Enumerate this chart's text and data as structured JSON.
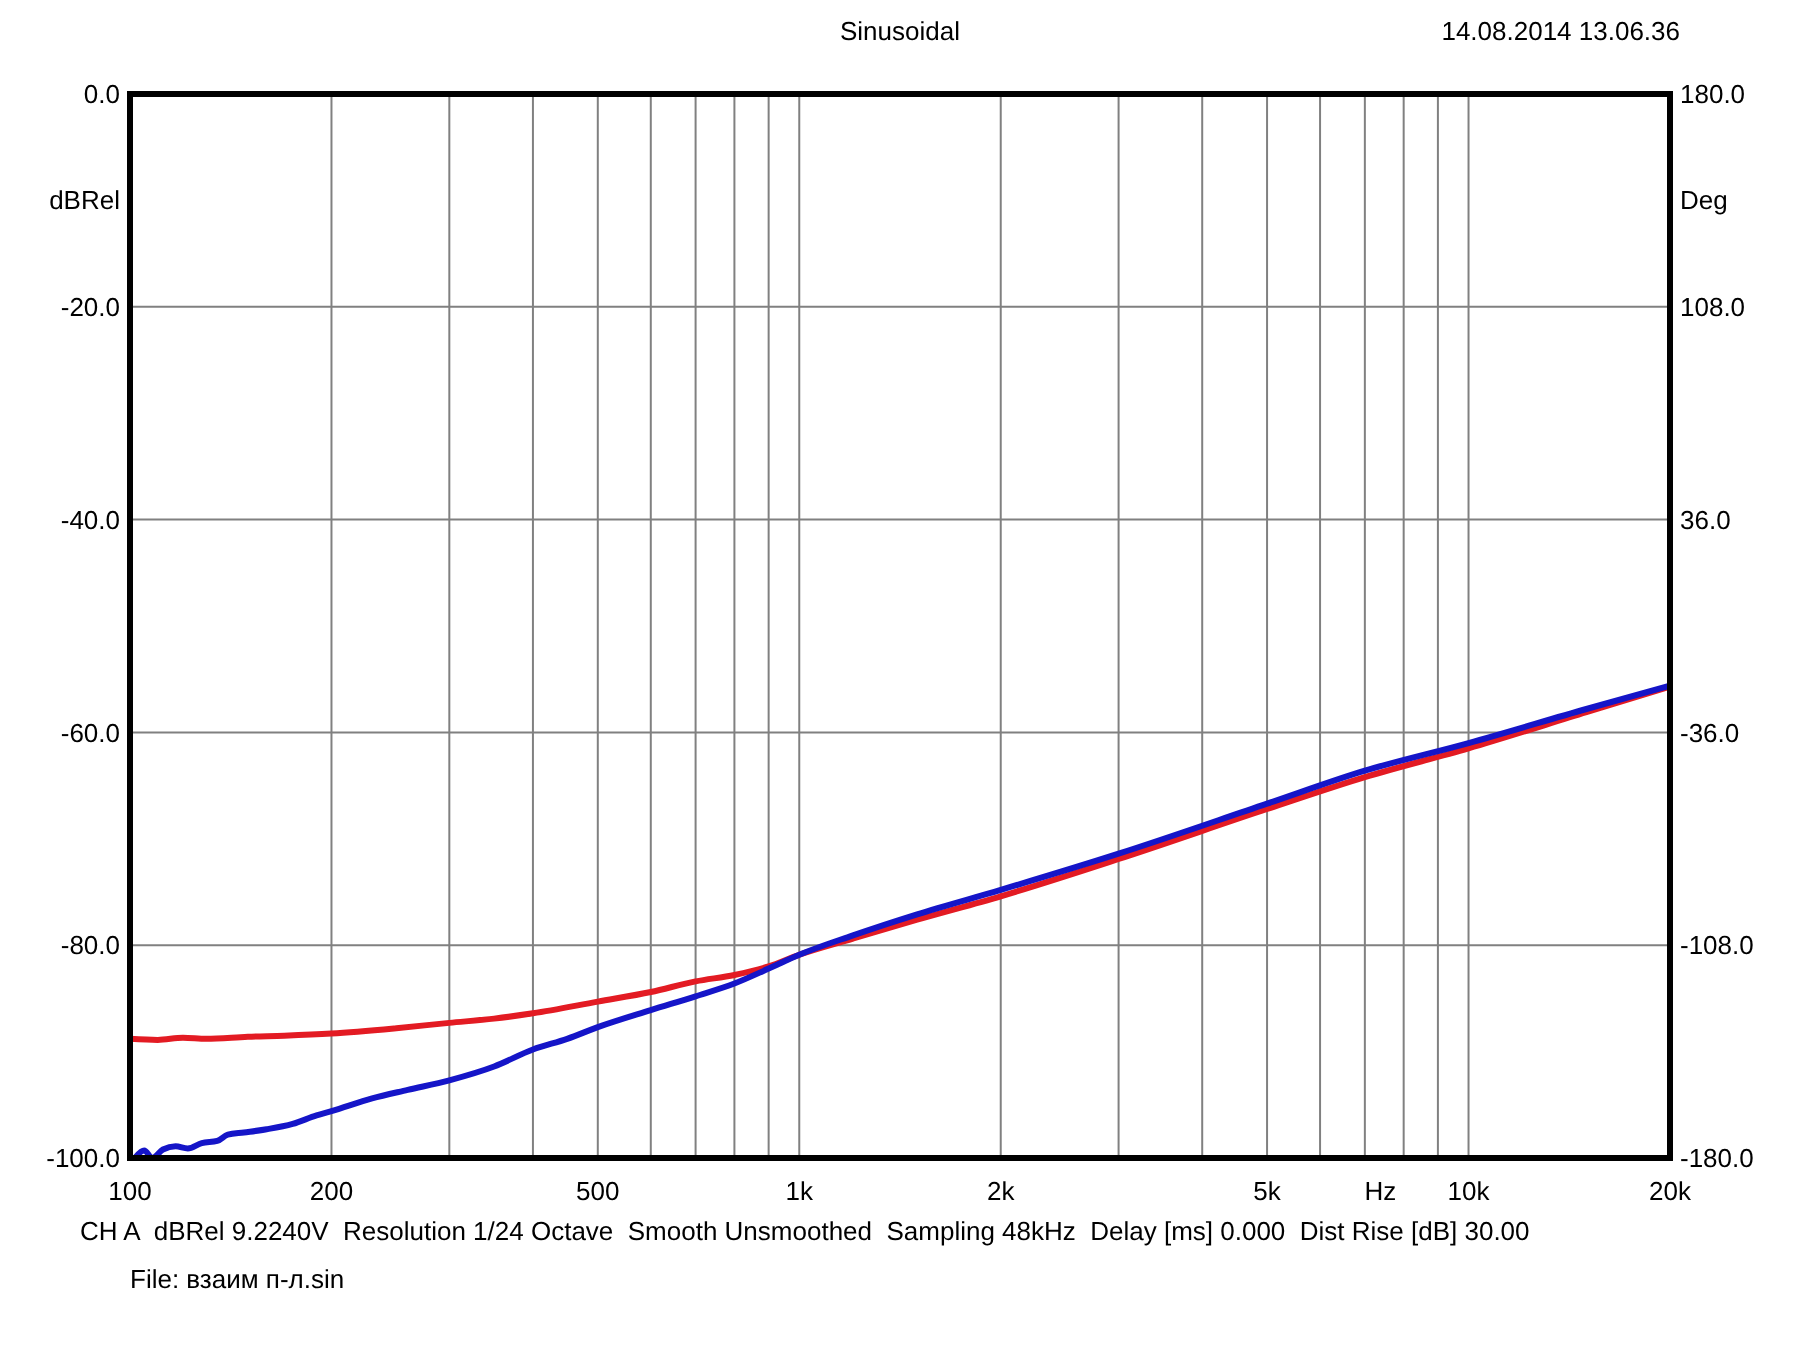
{
  "chart_data": {
    "type": "line",
    "title": "Sinusoidal",
    "xlabel": "Hz",
    "ylabel": "dBRel",
    "y2label": "Deg",
    "annotations": [
      "14.08.2014 13.06.36",
      "CH A  dBRel 9.2240V  Resolution 1/24 Octave  Smooth Unsmoothed  Sampling 48kHz  Delay [ms] 0.000  Dist Rise [dB] 30.00",
      "File: взаим п-л.sin"
    ],
    "log": "x",
    "grid": true,
    "xlim": [
      100,
      20000
    ],
    "xticks": [
      100,
      200,
      {
        "value": 300,
        "label": null
      },
      {
        "value": 400,
        "label": null
      },
      500,
      {
        "value": 600,
        "label": null
      },
      {
        "value": 700,
        "label": null
      },
      {
        "value": 800,
        "label": null
      },
      {
        "value": 900,
        "label": null
      },
      {
        "value": 1000,
        "label": "1k"
      },
      {
        "value": 2000,
        "label": "2k"
      },
      {
        "value": 3000,
        "label": null
      },
      {
        "value": 4000,
        "label": null
      },
      {
        "value": 5000,
        "label": "5k"
      },
      {
        "value": 6000,
        "label": null
      },
      {
        "value": 7000,
        "label": null
      },
      {
        "value": 8000,
        "label": null
      },
      {
        "value": 9000,
        "label": null
      },
      {
        "value": 10000,
        "label": "10k"
      },
      {
        "value": 20000,
        "label": "20k"
      }
    ],
    "ylim": [
      -100,
      0
    ],
    "yticks": [
      {
        "value": 0,
        "label": "0.0"
      },
      {
        "value": -20,
        "label": "-20.0"
      },
      {
        "value": -40,
        "label": "-40.0"
      },
      {
        "value": -60,
        "label": "-60.0"
      },
      {
        "value": -80,
        "label": "-80.0"
      },
      {
        "value": -100,
        "label": "-100.0"
      }
    ],
    "y2lim": [
      -180,
      180
    ],
    "y2ticks": [
      {
        "value": 180,
        "label": "180.0"
      },
      {
        "value": 108,
        "label": "108.0"
      },
      {
        "value": 36,
        "label": "36.0"
      },
      {
        "value": -36,
        "label": "-36.0"
      },
      {
        "value": -108,
        "label": "-108.0"
      },
      {
        "value": -180,
        "label": "-180.0"
      }
    ],
    "series": [
      {
        "color": "#e31b23",
        "x": [
          100,
          110,
          120,
          130,
          150,
          170,
          200,
          250,
          300,
          350,
          400,
          500,
          600,
          700,
          800,
          900,
          1000,
          1200,
          1500,
          2000,
          3000,
          5000,
          7000,
          10000,
          15000,
          20000
        ],
        "values": [
          -88.8,
          -88.9,
          -88.7,
          -88.8,
          -88.6,
          -88.5,
          -88.3,
          -87.8,
          -87.3,
          -86.9,
          -86.4,
          -85.3,
          -84.4,
          -83.4,
          -82.8,
          -82.0,
          -80.9,
          -79.4,
          -77.6,
          -75.4,
          -71.9,
          -67.2,
          -64.2,
          -61.5,
          -58.1,
          -55.7
        ]
      },
      {
        "color": "#1515c8",
        "x": [
          102,
          105,
          108,
          112,
          117,
          122,
          128,
          135,
          140,
          148,
          160,
          175,
          190,
          200,
          230,
          260,
          300,
          350,
          400,
          450,
          500,
          600,
          700,
          800,
          900,
          1000,
          1200,
          1500,
          2000,
          3000,
          5000,
          7000,
          10000,
          15000,
          20000
        ],
        "values": [
          -99.9,
          -99.3,
          -100.0,
          -99.2,
          -98.9,
          -99.1,
          -98.6,
          -98.4,
          -97.8,
          -97.6,
          -97.3,
          -96.8,
          -96.0,
          -95.6,
          -94.4,
          -93.6,
          -92.7,
          -91.4,
          -89.8,
          -88.8,
          -87.7,
          -86.1,
          -84.8,
          -83.6,
          -82.2,
          -80.9,
          -79.1,
          -77.1,
          -74.8,
          -71.4,
          -66.7,
          -63.6,
          -61.0,
          -57.8,
          -55.6
        ]
      }
    ]
  }
}
